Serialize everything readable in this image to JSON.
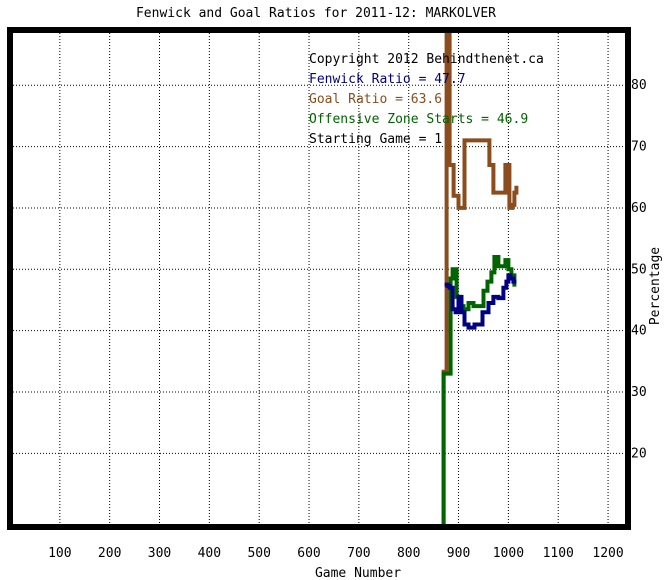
{
  "chart_data": {
    "type": "line",
    "title": "Fenwick and Goal Ratios for 2011-12: MARKOLVER",
    "xlabel": "Game Number",
    "ylabel": "Percentage",
    "xlim": [
      0,
      1240
    ],
    "ylim": [
      8,
      89
    ],
    "x_ticks": [
      "100",
      "200",
      "300",
      "400",
      "500",
      "600",
      "700",
      "800",
      "900",
      "1000",
      "1100",
      "1200"
    ],
    "y_ticks": [
      "20",
      "30",
      "40",
      "50",
      "60",
      "70",
      "80"
    ],
    "grid": true,
    "legend_position": "top-right",
    "annotations": [
      {
        "text": "Copyright 2012 Behindthenet.ca",
        "color": "#000000"
      },
      {
        "text": "Fenwick Ratio = 47.7",
        "color": "#000080"
      },
      {
        "text": "Goal Ratio = 63.6",
        "color": "#8b4c1e"
      },
      {
        "text": "Offensive Zone Starts = 46.9",
        "color": "#006400"
      },
      {
        "text": "Starting Game = 1",
        "color": "#000000"
      }
    ],
    "series": [
      {
        "name": "Fenwick Ratio",
        "color": "#000080",
        "x": [
          872,
          878,
          878,
          882,
          882,
          888,
          888,
          894,
          894,
          900,
          900,
          906,
          906,
          912,
          912,
          920,
          920,
          932,
          932,
          948,
          948,
          960,
          960,
          970,
          970,
          980,
          980,
          990,
          990,
          996,
          996,
          1000,
          1000,
          1004,
          1004,
          1010,
          1010,
          1016
        ],
        "y": [
          47.5,
          47.5,
          47.3,
          47.3,
          47.0,
          47.0,
          43.5,
          43.5,
          43.0,
          43.0,
          45.5,
          45.5,
          43.0,
          43.0,
          41.0,
          41.0,
          40.5,
          40.5,
          41.0,
          41.0,
          43.0,
          43.0,
          44.5,
          44.5,
          45.5,
          45.5,
          45.3,
          45.3,
          47.0,
          47.0,
          48.0,
          48.0,
          49.0,
          49.0,
          48.5,
          48.5,
          48.0,
          48.0
        ]
      },
      {
        "name": "Goal Ratio",
        "color": "#8b4c1e",
        "x": [
          870,
          870,
          876,
          876,
          882,
          882,
          890,
          890,
          900,
          900,
          906,
          906,
          912,
          912,
          924,
          924,
          962,
          962,
          970,
          970,
          988,
          988,
          994,
          994,
          1002,
          1002,
          1008,
          1008,
          1012,
          1012,
          1016,
          1016
        ],
        "y": [
          8,
          33.3,
          33.3,
          89,
          89,
          67,
          67,
          62,
          62,
          60,
          60,
          60,
          60,
          71,
          71,
          71,
          71,
          67,
          67,
          62.5,
          62.5,
          62.5,
          62.5,
          67,
          67,
          60,
          60,
          60.5,
          60.5,
          62.5,
          62.5,
          63.6
        ]
      },
      {
        "name": "Offensive Zone Starts",
        "color": "#006400",
        "x": [
          870,
          870,
          878,
          878,
          884,
          884,
          888,
          888,
          896,
          896,
          902,
          902,
          910,
          910,
          920,
          920,
          930,
          930,
          950,
          950,
          958,
          958,
          966,
          966,
          972,
          972,
          980,
          980,
          994,
          994,
          1000,
          1000,
          1006,
          1006,
          1012,
          1012,
          1016
        ],
        "y": [
          8,
          33,
          33,
          33,
          33,
          48.5,
          48.5,
          50,
          50,
          45.5,
          45.5,
          44,
          44,
          43.5,
          43.5,
          44.5,
          44.5,
          44,
          44,
          46.5,
          46.5,
          48,
          48,
          49.5,
          49.5,
          52,
          52,
          50.5,
          50.5,
          51.5,
          51.5,
          50,
          50,
          49,
          49,
          47.5,
          47.5
        ]
      }
    ]
  }
}
